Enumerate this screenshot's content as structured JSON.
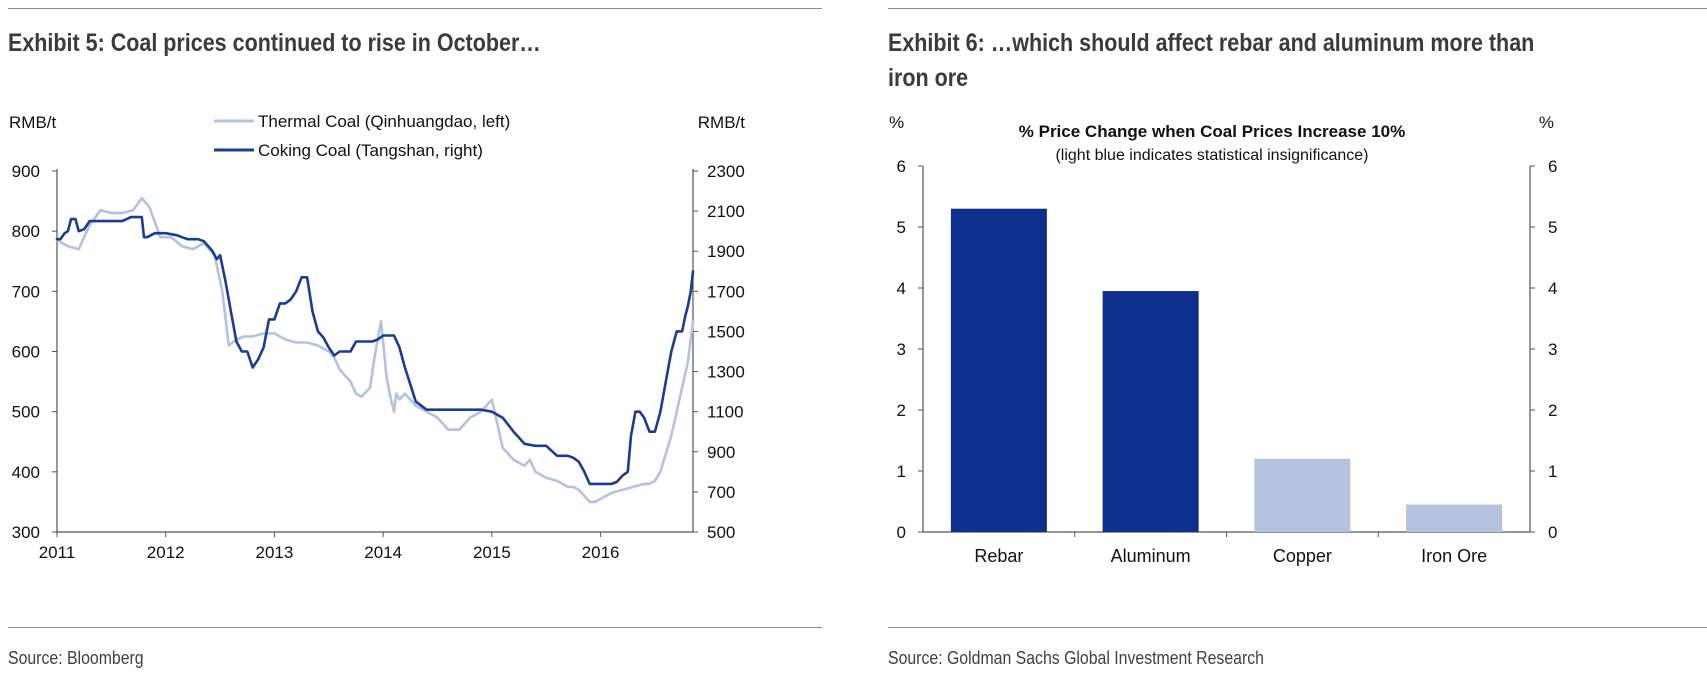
{
  "left": {
    "title": "Exhibit 5: Coal prices continued to rise in October…",
    "source": "Source: Bloomberg"
  },
  "right": {
    "title_line1": "Exhibit 6: …which should affect rebar and aluminum more than",
    "title_line2": "iron ore",
    "source": "Source: Goldman Sachs Global Investment Research"
  },
  "chart_data": [
    {
      "type": "line",
      "y_unit_left": "RMB/t",
      "y_unit_right": "RMB/t",
      "ylim_left": [
        300,
        900
      ],
      "ylim_right": [
        500,
        2300
      ],
      "yticks_left": [
        "300",
        "400",
        "500",
        "600",
        "700",
        "800",
        "900"
      ],
      "yticks_right": [
        "500",
        "700",
        "900",
        "1100",
        "1300",
        "1500",
        "1700",
        "1900",
        "2100",
        "2300"
      ],
      "xlim": [
        2011,
        2016.85
      ],
      "xticks": [
        "2011",
        "2012",
        "2013",
        "2014",
        "2015",
        "2016"
      ],
      "grid": false,
      "legend_position": "top-center",
      "colors": {
        "thermal": "#b4c2de",
        "coking": "#1b3c93"
      },
      "series": [
        {
          "name": "Thermal Coal (Qinhuangdao, left)",
          "axis": "left",
          "x": [
            2011.0,
            2011.1,
            2011.2,
            2011.3,
            2011.4,
            2011.5,
            2011.6,
            2011.7,
            2011.78,
            2011.85,
            2011.95,
            2012.05,
            2012.15,
            2012.25,
            2012.35,
            2012.45,
            2012.52,
            2012.58,
            2012.65,
            2012.72,
            2012.8,
            2012.9,
            2013.0,
            2013.1,
            2013.2,
            2013.3,
            2013.4,
            2013.5,
            2013.55,
            2013.6,
            2013.7,
            2013.75,
            2013.8,
            2013.88,
            2013.92,
            2013.95,
            2013.98,
            2014.0,
            2014.03,
            2014.06,
            2014.1,
            2014.12,
            2014.15,
            2014.2,
            2014.3,
            2014.4,
            2014.5,
            2014.55,
            2014.6,
            2014.7,
            2014.75,
            2014.8,
            2014.9,
            2015.0,
            2015.05,
            2015.1,
            2015.2,
            2015.3,
            2015.35,
            2015.4,
            2015.45,
            2015.5,
            2015.6,
            2015.7,
            2015.75,
            2015.8,
            2015.85,
            2015.9,
            2015.95,
            2016.0,
            2016.1,
            2016.2,
            2016.3,
            2016.4,
            2016.45,
            2016.5,
            2016.55,
            2016.6,
            2016.65,
            2016.7,
            2016.75,
            2016.8,
            2016.85
          ],
          "values": [
            785,
            775,
            770,
            810,
            835,
            830,
            830,
            835,
            855,
            840,
            790,
            790,
            775,
            770,
            780,
            760,
            700,
            610,
            620,
            625,
            625,
            630,
            630,
            620,
            615,
            615,
            610,
            600,
            590,
            570,
            550,
            530,
            525,
            540,
            590,
            620,
            650,
            615,
            560,
            530,
            500,
            530,
            520,
            530,
            510,
            500,
            490,
            480,
            470,
            470,
            480,
            490,
            500,
            520,
            480,
            440,
            420,
            410,
            420,
            400,
            395,
            390,
            385,
            375,
            375,
            370,
            360,
            350,
            350,
            355,
            365,
            370,
            375,
            380,
            380,
            385,
            400,
            430,
            460,
            500,
            540,
            580,
            650
          ]
        },
        {
          "name": "Coking Coal (Tangshan, right)",
          "axis": "right",
          "x": [
            2011.0,
            2011.03,
            2011.07,
            2011.1,
            2011.13,
            2011.17,
            2011.2,
            2011.25,
            2011.3,
            2011.4,
            2011.5,
            2011.6,
            2011.68,
            2011.75,
            2011.78,
            2011.8,
            2011.83,
            2011.9,
            2012.0,
            2012.1,
            2012.2,
            2012.3,
            2012.35,
            2012.4,
            2012.43,
            2012.47,
            2012.5,
            2012.55,
            2012.6,
            2012.65,
            2012.7,
            2012.75,
            2012.8,
            2012.85,
            2012.9,
            2012.95,
            2013.0,
            2013.05,
            2013.1,
            2013.15,
            2013.2,
            2013.25,
            2013.3,
            2013.35,
            2013.4,
            2013.45,
            2013.5,
            2013.55,
            2013.6,
            2013.7,
            2013.75,
            2013.8,
            2013.9,
            2013.95,
            2014.0,
            2014.05,
            2014.1,
            2014.15,
            2014.2,
            2014.3,
            2014.4,
            2014.5,
            2014.6,
            2014.7,
            2014.8,
            2014.9,
            2015.0,
            2015.1,
            2015.2,
            2015.3,
            2015.4,
            2015.5,
            2015.6,
            2015.7,
            2015.75,
            2015.8,
            2015.85,
            2015.9,
            2016.0,
            2016.1,
            2016.15,
            2016.2,
            2016.25,
            2016.28,
            2016.32,
            2016.36,
            2016.4,
            2016.45,
            2016.5,
            2016.55,
            2016.6,
            2016.65,
            2016.7,
            2016.75,
            2016.78,
            2016.8,
            2016.83,
            2016.85
          ],
          "values": [
            1960,
            1960,
            1990,
            2000,
            2060,
            2060,
            2000,
            2010,
            2050,
            2050,
            2050,
            2050,
            2070,
            2070,
            2070,
            1970,
            1970,
            1990,
            1990,
            1980,
            1960,
            1960,
            1950,
            1920,
            1900,
            1860,
            1880,
            1750,
            1600,
            1450,
            1400,
            1400,
            1320,
            1360,
            1420,
            1560,
            1560,
            1640,
            1640,
            1660,
            1700,
            1770,
            1770,
            1600,
            1500,
            1470,
            1420,
            1380,
            1400,
            1400,
            1450,
            1450,
            1450,
            1460,
            1480,
            1480,
            1480,
            1420,
            1320,
            1150,
            1110,
            1110,
            1110,
            1110,
            1110,
            1110,
            1100,
            1070,
            1000,
            940,
            930,
            930,
            880,
            880,
            870,
            850,
            800,
            740,
            740,
            740,
            750,
            780,
            800,
            980,
            1100,
            1100,
            1070,
            1000,
            1000,
            1100,
            1250,
            1400,
            1500,
            1500,
            1580,
            1620,
            1700,
            1800
          ]
        }
      ]
    },
    {
      "type": "bar",
      "title": "%  Price Change when Coal Prices Increase 10%",
      "subtitle": "(light blue indicates statistical insignificance)",
      "y_unit_left": "%",
      "y_unit_right": "%",
      "ylim": [
        0,
        6
      ],
      "yticks": [
        "0",
        "1",
        "2",
        "3",
        "4",
        "5",
        "6"
      ],
      "grid": false,
      "categories": [
        "Rebar",
        "Aluminum",
        "Copper",
        "Iron Ore"
      ],
      "values": [
        5.3,
        3.95,
        1.2,
        0.45
      ],
      "significant": [
        true,
        true,
        false,
        false
      ],
      "colors": {
        "significant": "#0e2f8c",
        "insignificant": "#b4c2de"
      }
    }
  ]
}
